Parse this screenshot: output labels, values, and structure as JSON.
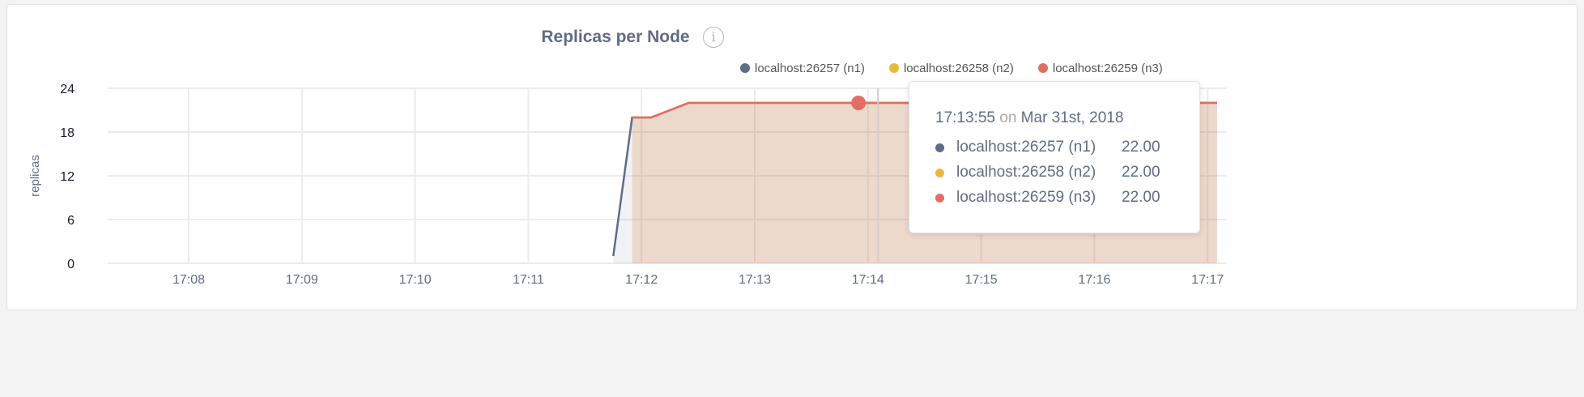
{
  "chart_data": {
    "type": "area",
    "title": "Replicas per Node",
    "ylabel": "replicas",
    "xlabel": "",
    "ylim": [
      0,
      24
    ],
    "yticks": [
      "0",
      "6",
      "12",
      "18",
      "24"
    ],
    "xticks": [
      "17:08",
      "17:09",
      "17:10",
      "17:11",
      "17:12",
      "17:13",
      "17:14",
      "17:15",
      "17:16",
      "17:17"
    ],
    "xlim": [
      "17:07:17",
      "17:17:10"
    ],
    "grid": true,
    "legend_position": "top",
    "series": [
      {
        "name": "localhost:26257 (n1)",
        "color": "#5f6c87",
        "x": [
          "17:11:45",
          "17:11:55",
          "17:12:05",
          "17:12:25",
          "17:17:05"
        ],
        "values": [
          1,
          20,
          20,
          22,
          22
        ]
      },
      {
        "name": "localhost:26258 (n2)",
        "color": "#e9b83e",
        "x": [
          "17:11:55",
          "17:12:05",
          "17:12:25",
          "17:17:05"
        ],
        "values": [
          20,
          20,
          22,
          22
        ]
      },
      {
        "name": "localhost:26259 (n3)",
        "color": "#e26d63",
        "x": [
          "17:11:55",
          "17:12:05",
          "17:12:25",
          "17:17:05"
        ],
        "values": [
          20,
          20,
          22,
          22
        ]
      }
    ],
    "tooltip": {
      "time": "17:13:55",
      "on": "on",
      "date": "Mar 31st, 2018",
      "rows": [
        {
          "label": "localhost:26257 (n1)",
          "value": "22.00",
          "color": "#5f6c87"
        },
        {
          "label": "localhost:26258 (n2)",
          "value": "22.00",
          "color": "#e9b83e"
        },
        {
          "label": "localhost:26259 (n3)",
          "value": "22.00",
          "color": "#e26d63"
        }
      ]
    }
  },
  "info_icon": "i"
}
